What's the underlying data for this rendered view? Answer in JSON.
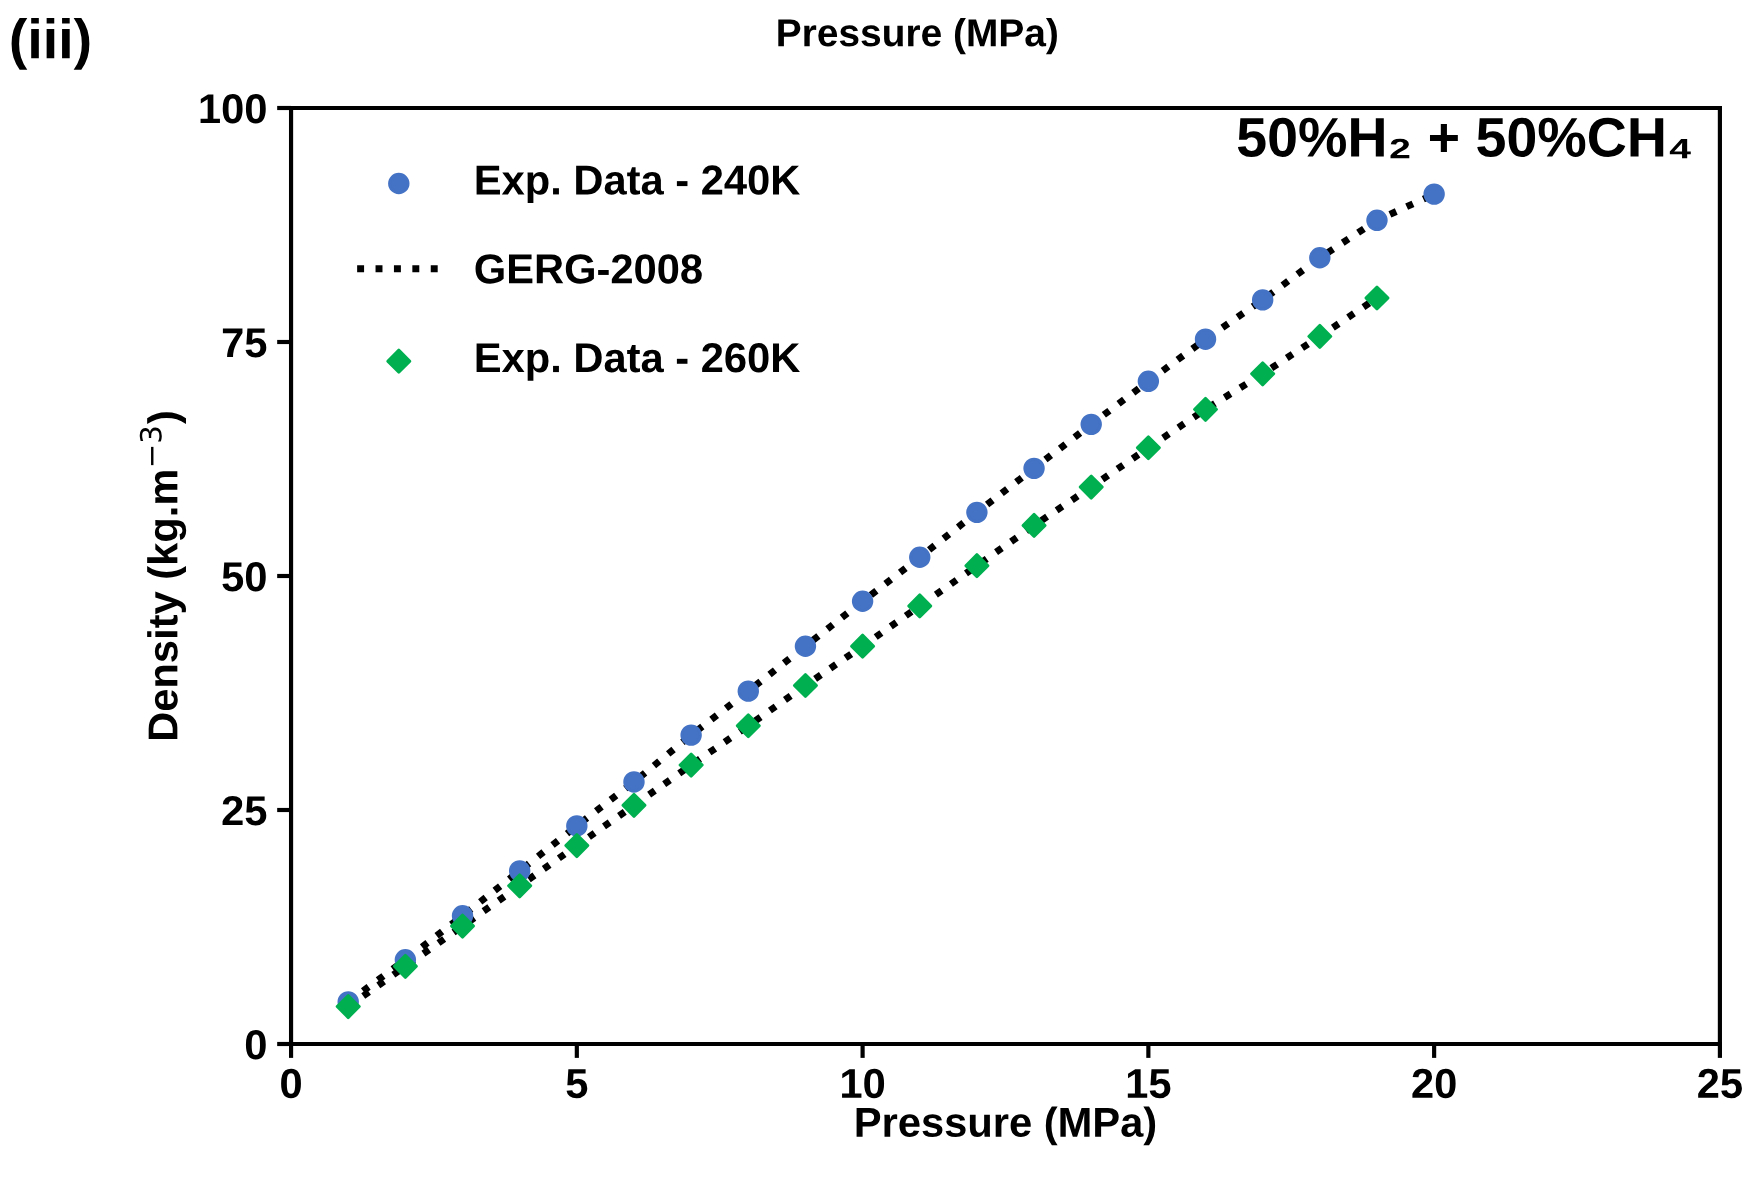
{
  "chart_data": {
    "type": "scatter",
    "xlabel": "Pressure (MPa)",
    "ylabel": "Density (kg.m$^{−3}$)",
    "xlim": [
      0,
      25
    ],
    "ylim": [
      0,
      100
    ],
    "xticks": [
      0,
      5,
      10,
      15,
      20,
      25
    ],
    "yticks": [
      0,
      25,
      50,
      75,
      100
    ],
    "grid": false,
    "legend": "top left",
    "annotations": [
      "Pressure (MPa)",
      "(iii)",
      "50%H₂ + 50%CH₄"
    ],
    "series": [
      {
        "name": "Exp. Data - 240K",
        "marker": "circle",
        "color": "#4472c4",
        "x": [
          1,
          2,
          3,
          4,
          5,
          6,
          7,
          8,
          9,
          10,
          11,
          12,
          13,
          14,
          15,
          16,
          17,
          18,
          19,
          20
        ],
        "values": [
          4.5,
          9,
          13.7,
          18.5,
          23.3,
          28,
          33,
          37.7,
          42.5,
          47.3,
          52,
          56.8,
          61.5,
          66.2,
          70.8,
          75.3,
          79.5,
          84,
          88,
          90.8
        ]
      },
      {
        "name": "GERG-2008",
        "type": "line",
        "line_style": "dotted",
        "marker": "none",
        "color": "#000000",
        "x": [
          1,
          2,
          3,
          4,
          5,
          6,
          7,
          8,
          9,
          10,
          11,
          12,
          13,
          14,
          15,
          16,
          17,
          18,
          19,
          20
        ],
        "values": [
          4.5,
          9,
          13.7,
          18.5,
          23.3,
          28,
          33,
          37.7,
          42.5,
          47.3,
          52,
          56.8,
          61.5,
          66.2,
          70.8,
          75.3,
          79.5,
          84,
          88,
          90.8
        ]
      },
      {
        "name": "Exp. Data - 260K",
        "marker": "diamond",
        "color": "#00b050",
        "x": [
          1,
          2,
          3,
          4,
          5,
          6,
          7,
          8,
          9,
          10,
          11,
          12,
          13,
          14,
          15,
          16,
          17,
          18,
          19
        ],
        "values": [
          4,
          8.3,
          12.6,
          16.9,
          21.2,
          25.5,
          29.8,
          34,
          38.3,
          42.5,
          46.8,
          51.1,
          55.4,
          59.5,
          63.7,
          67.8,
          71.6,
          75.6,
          79.7
        ]
      },
      {
        "type": "line",
        "line_style": "dotted",
        "marker": "none",
        "color": "#000000",
        "x": [
          1,
          2,
          3,
          4,
          5,
          6,
          7,
          8,
          9,
          10,
          11,
          12,
          13,
          14,
          15,
          16,
          17,
          18,
          19
        ],
        "values": [
          4,
          8.3,
          12.6,
          16.9,
          21.2,
          25.5,
          29.8,
          34,
          38.3,
          42.5,
          46.8,
          51.1,
          55.4,
          59.5,
          63.7,
          67.8,
          71.6,
          75.6,
          79.7
        ]
      }
    ]
  }
}
